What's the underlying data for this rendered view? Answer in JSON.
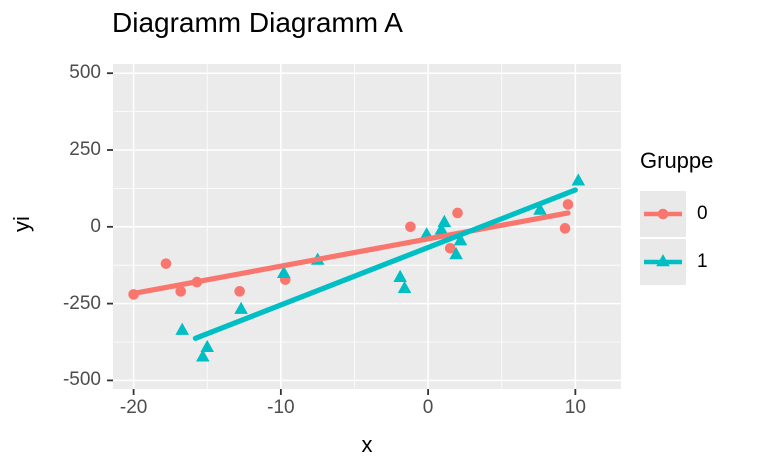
{
  "chart": {
    "title": "Diagramm Diagramm A",
    "xlabel": "x",
    "ylabel": "yi",
    "legend_title": "Gruppe"
  },
  "chart_data": {
    "type": "scatter",
    "title": "Diagramm Diagramm A",
    "xlabel": "x",
    "ylabel": "yi",
    "xlim": [
      -21.4,
      13.1
    ],
    "ylim": [
      -528,
      530
    ],
    "x_ticks": [
      {
        "value": -20,
        "label": "-20"
      },
      {
        "value": -10,
        "label": "-10"
      },
      {
        "value": 0,
        "label": "0"
      },
      {
        "value": 10,
        "label": "10"
      }
    ],
    "y_ticks": [
      {
        "value": 500,
        "label": "500"
      },
      {
        "value": 250,
        "label": "250"
      },
      {
        "value": 0,
        "label": "0"
      },
      {
        "value": -250,
        "label": "-250"
      },
      {
        "value": -500,
        "label": "-500"
      }
    ],
    "x_minor": [
      -15,
      -5,
      5
    ],
    "y_minor": [
      -375,
      -125,
      125,
      375
    ],
    "grid": "major and minor white gridlines on gray panel",
    "legend": {
      "title": "Gruppe",
      "position": "right"
    },
    "series": [
      {
        "name": "0",
        "marker": "circle",
        "color": "#F8766D",
        "points": [
          [
            -20,
            -220
          ],
          [
            -17.8,
            -120
          ],
          [
            -16.8,
            -210
          ],
          [
            -15.7,
            -180
          ],
          [
            -12.8,
            -210
          ],
          [
            -9.7,
            -172
          ],
          [
            -1.2,
            0
          ],
          [
            1.5,
            -70
          ],
          [
            2,
            45
          ],
          [
            9.3,
            -5
          ],
          [
            9.5,
            73
          ]
        ],
        "trend_line": [
          [
            -20,
            -217
          ],
          [
            9.5,
            45
          ]
        ]
      },
      {
        "name": "1",
        "marker": "triangle",
        "color": "#00BFC4",
        "points": [
          [
            -16.7,
            -336
          ],
          [
            -15.3,
            -423
          ],
          [
            -15,
            -392
          ],
          [
            -12.7,
            -268
          ],
          [
            -9.8,
            -151
          ],
          [
            -7.5,
            -108
          ],
          [
            -1.9,
            -164
          ],
          [
            -1.6,
            -200
          ],
          [
            -0.1,
            -25
          ],
          [
            0.9,
            -10
          ],
          [
            1.1,
            15
          ],
          [
            1.9,
            -90
          ],
          [
            2.2,
            -45
          ],
          [
            7.6,
            55
          ],
          [
            10.2,
            150
          ]
        ],
        "trend_line": [
          [
            -15.8,
            -363
          ],
          [
            10,
            120
          ]
        ]
      }
    ],
    "colors": {
      "panel_bg": "#EBEBEB",
      "grid": "#FFFFFF",
      "tick_text": "#4D4D4D",
      "tick_mark": "#333333",
      "text": "#000000",
      "legend_key_bg": "#E9E9E9",
      "group0": "#F8766D",
      "group1": "#00BFC4"
    }
  }
}
